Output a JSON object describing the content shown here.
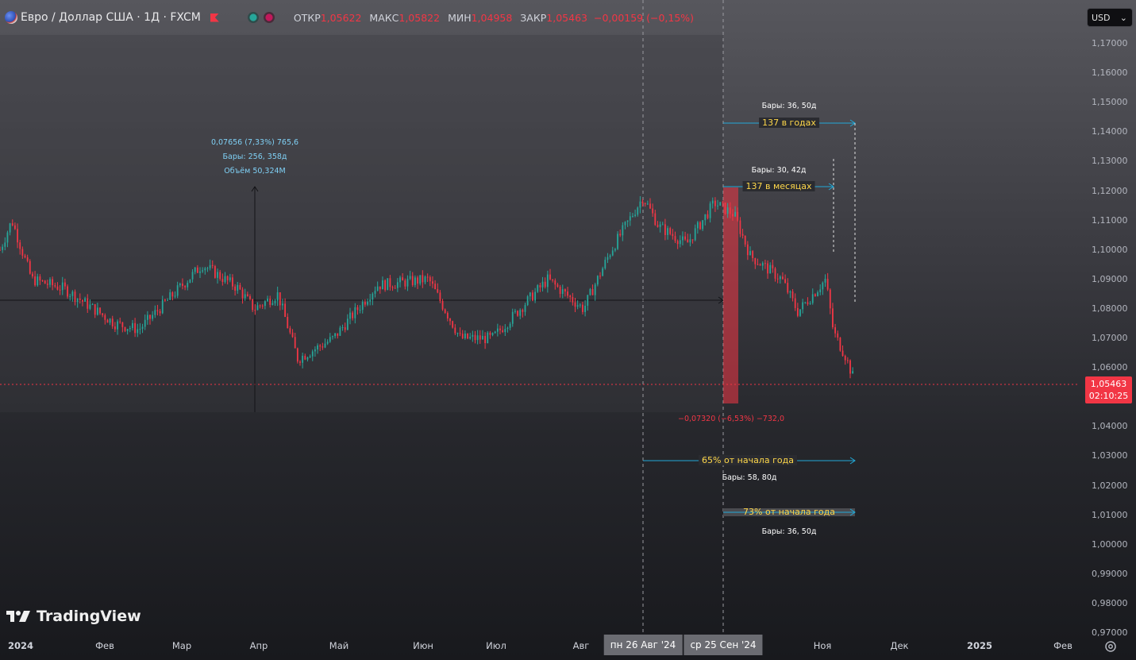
{
  "header": {
    "symbol": "Евро / Доллар США · 1Д · FXCM",
    "ohlc": [
      {
        "label": "ОТКР",
        "value": "1,05622"
      },
      {
        "label": "МАКС",
        "value": "1,05822"
      },
      {
        "label": "МИН",
        "value": "1,04958"
      },
      {
        "label": "ЗАКР",
        "value": "1,05463"
      }
    ],
    "change": "−0,00159 (−0,15%)"
  },
  "currency": {
    "label": "USD"
  },
  "price_axis": [
    "1,17000",
    "1,16000",
    "1,15000",
    "1,14000",
    "1,13000",
    "1,12000",
    "1,11000",
    "1,10000",
    "1,09000",
    "1,08000",
    "1,07000",
    "1,06000",
    "1,04000",
    "1,03000",
    "1,02000",
    "1,01000",
    "1,00000",
    "0,99000",
    "0,98000",
    "0,97000"
  ],
  "last_price": {
    "price": "1,05463",
    "countdown": "02:10:25",
    "color": "#f23645"
  },
  "time_axis": {
    "labels": [
      "2024",
      "Фев",
      "Мар",
      "Апр",
      "Май",
      "Июн",
      "Июл",
      "Авг",
      "Ноя",
      "Дек",
      "2025",
      "Фев"
    ],
    "badge_left": "пн 26 Авг '24",
    "badge_right": "ср 25 Сен '24"
  },
  "annotations": {
    "measure_up": [
      "0,07656 (7,33%) 765,6",
      "Бары: 256, 358д",
      "Объём 50,324M"
    ],
    "measure_down": "−0,07320 (−6,53%) −732,0",
    "bars_top": "Бары: 36, 50д",
    "label_years": "137 в годах",
    "bars_mid": "Бары: 30, 42д",
    "label_months": "137 в месяцах",
    "label_65": "65% от начала года",
    "bars_58": "Бары: 58, 80д",
    "label_73": "73% от начала года",
    "bars_bottom": "Бары: 36, 50д"
  },
  "logo": {
    "text": "TradingView"
  },
  "colors": {
    "up": "#26a69a",
    "down": "#f23645",
    "accent": "#22a9d8",
    "highlight": "#ffd84a"
  }
}
